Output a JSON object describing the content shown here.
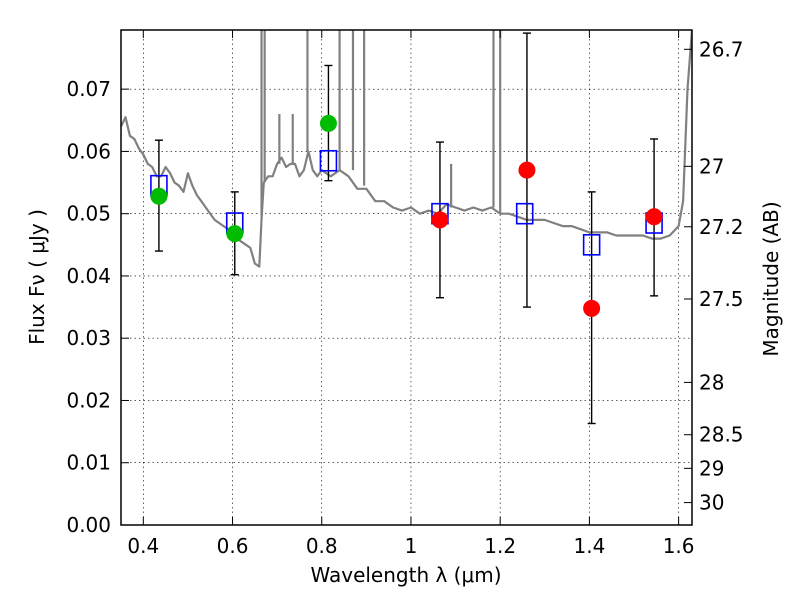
{
  "chart_data": {
    "type": "scatter",
    "xlabel": "Wavelength  λ (μm)",
    "ylabel": "Flux  Fν  ( μJy )",
    "ylabel_right": "Magnitude (AB)",
    "xlim": [
      0.35,
      1.63
    ],
    "ylim": [
      0.0,
      0.0795
    ],
    "grid": true,
    "x_ticks": [
      0.4,
      0.6,
      0.8,
      1.0,
      1.2,
      1.4,
      1.6
    ],
    "x_tick_labels": [
      "0.4",
      "0.6",
      "0.8",
      "1",
      "1.2",
      "1.4",
      "1.6"
    ],
    "y_ticks": [
      0.0,
      0.01,
      0.02,
      0.03,
      0.04,
      0.05,
      0.06,
      0.07
    ],
    "y_tick_labels": [
      "0.00",
      "0.01",
      "0.02",
      "0.03",
      "0.04",
      "0.05",
      "0.06",
      "0.07"
    ],
    "right_ticks": [
      {
        "label": "26.7",
        "flux": 0.0764
      },
      {
        "label": "27",
        "flux": 0.0576
      },
      {
        "label": "27.2",
        "flux": 0.0479
      },
      {
        "label": "27.5",
        "flux": 0.0363
      },
      {
        "label": "28",
        "flux": 0.0229
      },
      {
        "label": "28.5",
        "flux": 0.0145
      },
      {
        "label": "29",
        "flux": 0.0091
      },
      {
        "label": "30",
        "flux": 0.0036
      }
    ],
    "model_spectrum": {
      "color": "#808080",
      "points": [
        [
          0.35,
          0.064
        ],
        [
          0.36,
          0.0655
        ],
        [
          0.37,
          0.0625
        ],
        [
          0.38,
          0.062
        ],
        [
          0.39,
          0.0605
        ],
        [
          0.4,
          0.0595
        ],
        [
          0.41,
          0.058
        ],
        [
          0.42,
          0.0575
        ],
        [
          0.43,
          0.056
        ],
        [
          0.44,
          0.056
        ],
        [
          0.45,
          0.0575
        ],
        [
          0.46,
          0.0565
        ],
        [
          0.47,
          0.055
        ],
        [
          0.48,
          0.0545
        ],
        [
          0.49,
          0.0535
        ],
        [
          0.5,
          0.0565
        ],
        [
          0.51,
          0.0545
        ],
        [
          0.52,
          0.053
        ],
        [
          0.53,
          0.052
        ],
        [
          0.54,
          0.051
        ],
        [
          0.55,
          0.05
        ],
        [
          0.56,
          0.049
        ],
        [
          0.57,
          0.0485
        ],
        [
          0.58,
          0.048
        ],
        [
          0.59,
          0.0475
        ],
        [
          0.6,
          0.047
        ],
        [
          0.61,
          0.046
        ],
        [
          0.62,
          0.0455
        ],
        [
          0.63,
          0.045
        ],
        [
          0.64,
          0.0445
        ],
        [
          0.65,
          0.042
        ],
        [
          0.66,
          0.0415
        ],
        [
          0.665,
          0.049
        ],
        [
          0.67,
          0.055
        ],
        [
          0.68,
          0.056
        ],
        [
          0.69,
          0.056
        ],
        [
          0.7,
          0.058
        ],
        [
          0.71,
          0.059
        ],
        [
          0.72,
          0.0575
        ],
        [
          0.73,
          0.058
        ],
        [
          0.74,
          0.058
        ],
        [
          0.75,
          0.056
        ],
        [
          0.76,
          0.057
        ],
        [
          0.77,
          0.06
        ],
        [
          0.78,
          0.057
        ],
        [
          0.79,
          0.056
        ],
        [
          0.8,
          0.057
        ],
        [
          0.82,
          0.056
        ],
        [
          0.84,
          0.057
        ],
        [
          0.86,
          0.056
        ],
        [
          0.88,
          0.054
        ],
        [
          0.9,
          0.054
        ],
        [
          0.92,
          0.052
        ],
        [
          0.94,
          0.052
        ],
        [
          0.96,
          0.051
        ],
        [
          0.98,
          0.0505
        ],
        [
          1.0,
          0.051
        ],
        [
          1.02,
          0.05
        ],
        [
          1.04,
          0.0505
        ],
        [
          1.06,
          0.05
        ],
        [
          1.08,
          0.0515
        ],
        [
          1.1,
          0.051
        ],
        [
          1.12,
          0.0505
        ],
        [
          1.14,
          0.051
        ],
        [
          1.16,
          0.0505
        ],
        [
          1.18,
          0.051
        ],
        [
          1.2,
          0.05
        ],
        [
          1.22,
          0.05
        ],
        [
          1.24,
          0.0495
        ],
        [
          1.26,
          0.049
        ],
        [
          1.28,
          0.049
        ],
        [
          1.3,
          0.049
        ],
        [
          1.32,
          0.0485
        ],
        [
          1.34,
          0.048
        ],
        [
          1.36,
          0.048
        ],
        [
          1.38,
          0.0475
        ],
        [
          1.4,
          0.047
        ],
        [
          1.42,
          0.047
        ],
        [
          1.44,
          0.047
        ],
        [
          1.46,
          0.0465
        ],
        [
          1.48,
          0.0465
        ],
        [
          1.5,
          0.0465
        ],
        [
          1.52,
          0.0465
        ],
        [
          1.54,
          0.046
        ],
        [
          1.56,
          0.046
        ],
        [
          1.58,
          0.0465
        ],
        [
          1.6,
          0.048
        ],
        [
          1.61,
          0.052
        ],
        [
          1.62,
          0.07
        ],
        [
          1.63,
          0.0795
        ]
      ],
      "spikes": [
        {
          "x": 0.665,
          "base": 0.0495,
          "top": 0.0795
        },
        {
          "x": 0.672,
          "base": 0.055,
          "top": 0.0795
        },
        {
          "x": 0.705,
          "base": 0.058,
          "top": 0.066
        },
        {
          "x": 0.735,
          "base": 0.058,
          "top": 0.066
        },
        {
          "x": 0.768,
          "base": 0.06,
          "top": 0.0795
        },
        {
          "x": 0.84,
          "base": 0.057,
          "top": 0.0795
        },
        {
          "x": 0.87,
          "base": 0.057,
          "top": 0.0795
        },
        {
          "x": 0.895,
          "base": 0.0545,
          "top": 0.0795
        },
        {
          "x": 1.09,
          "base": 0.051,
          "top": 0.058
        },
        {
          "x": 1.185,
          "base": 0.051,
          "top": 0.0795
        },
        {
          "x": 1.2,
          "base": 0.05,
          "top": 0.0795
        }
      ]
    },
    "model_photometry": {
      "color": "#0000ff",
      "x": [
        0.435,
        0.605,
        0.815,
        1.065,
        1.255,
        1.405,
        1.545
      ],
      "y": [
        0.0545,
        0.0485,
        0.0585,
        0.05,
        0.05,
        0.045,
        0.0485
      ]
    },
    "observed_green": {
      "color": "#00bb00",
      "x": [
        0.435,
        0.605,
        0.815
      ],
      "y": [
        0.0528,
        0.0468,
        0.0645
      ],
      "err_low": [
        0.044,
        0.0402,
        0.0553
      ],
      "err_high": [
        0.0618,
        0.0535,
        0.0738
      ]
    },
    "observed_red": {
      "color": "#ff0000",
      "x": [
        1.065,
        1.26,
        1.405,
        1.545
      ],
      "y": [
        0.049,
        0.057,
        0.0348,
        0.0495
      ],
      "err_low": [
        0.0365,
        0.035,
        0.0163,
        0.0368
      ],
      "err_high": [
        0.0615,
        0.079,
        0.0535,
        0.062
      ]
    }
  }
}
